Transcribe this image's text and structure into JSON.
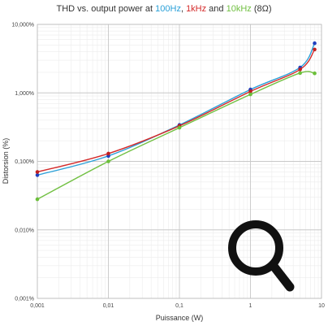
{
  "title": {
    "prefix": "THD vs. output power at ",
    "f100": "100Hz",
    "sep1": ", ",
    "f1k": "1kHz",
    "sep2": " and ",
    "f10k": "10kHz",
    "suffix": " (8Ω)"
  },
  "colors": {
    "blue": "#2aa0d8",
    "red": "#d42a2a",
    "green": "#72c043",
    "blue_marker": "#1f3fbf",
    "red_marker": "#c01f1f",
    "green_marker": "#6bbf3a",
    "grid_major": "#c8c8c8",
    "grid_minor": "#ececec",
    "icon": "#111111"
  },
  "icon": "magnifier-icon",
  "chart_data": {
    "type": "line",
    "title": "THD vs. output power at 100Hz, 1kHz and 10kHz (8Ω)",
    "xlabel": "Puissance (W)",
    "ylabel": "Distorsion (%)",
    "xscale": "log",
    "yscale": "log",
    "xlim": [
      0.001,
      10
    ],
    "ylim": [
      0.001,
      10
    ],
    "grid": true,
    "x_ticks": [
      "0,001",
      "0,01",
      "0,1",
      "1",
      "10"
    ],
    "y_ticks": [
      "0,001%",
      "0,010%",
      "0,100%",
      "1,000%",
      "10,000%"
    ],
    "series": [
      {
        "name": "100Hz",
        "color_key": "blue",
        "points": [
          [
            0.001,
            0.063
          ],
          [
            0.01,
            0.12
          ],
          [
            0.1,
            0.34
          ],
          [
            1,
            1.12
          ],
          [
            5,
            2.35
          ],
          [
            8,
            5.3
          ]
        ]
      },
      {
        "name": "1kHz",
        "color_key": "red",
        "points": [
          [
            0.001,
            0.07
          ],
          [
            0.01,
            0.13
          ],
          [
            0.1,
            0.33
          ],
          [
            1,
            1.05
          ],
          [
            5,
            2.2
          ],
          [
            8,
            4.3
          ]
        ]
      },
      {
        "name": "10kHz",
        "color_key": "green",
        "points": [
          [
            0.001,
            0.028
          ],
          [
            0.01,
            0.1
          ],
          [
            0.1,
            0.31
          ],
          [
            1,
            0.95
          ],
          [
            5,
            1.95
          ],
          [
            8,
            1.93
          ]
        ]
      }
    ]
  }
}
